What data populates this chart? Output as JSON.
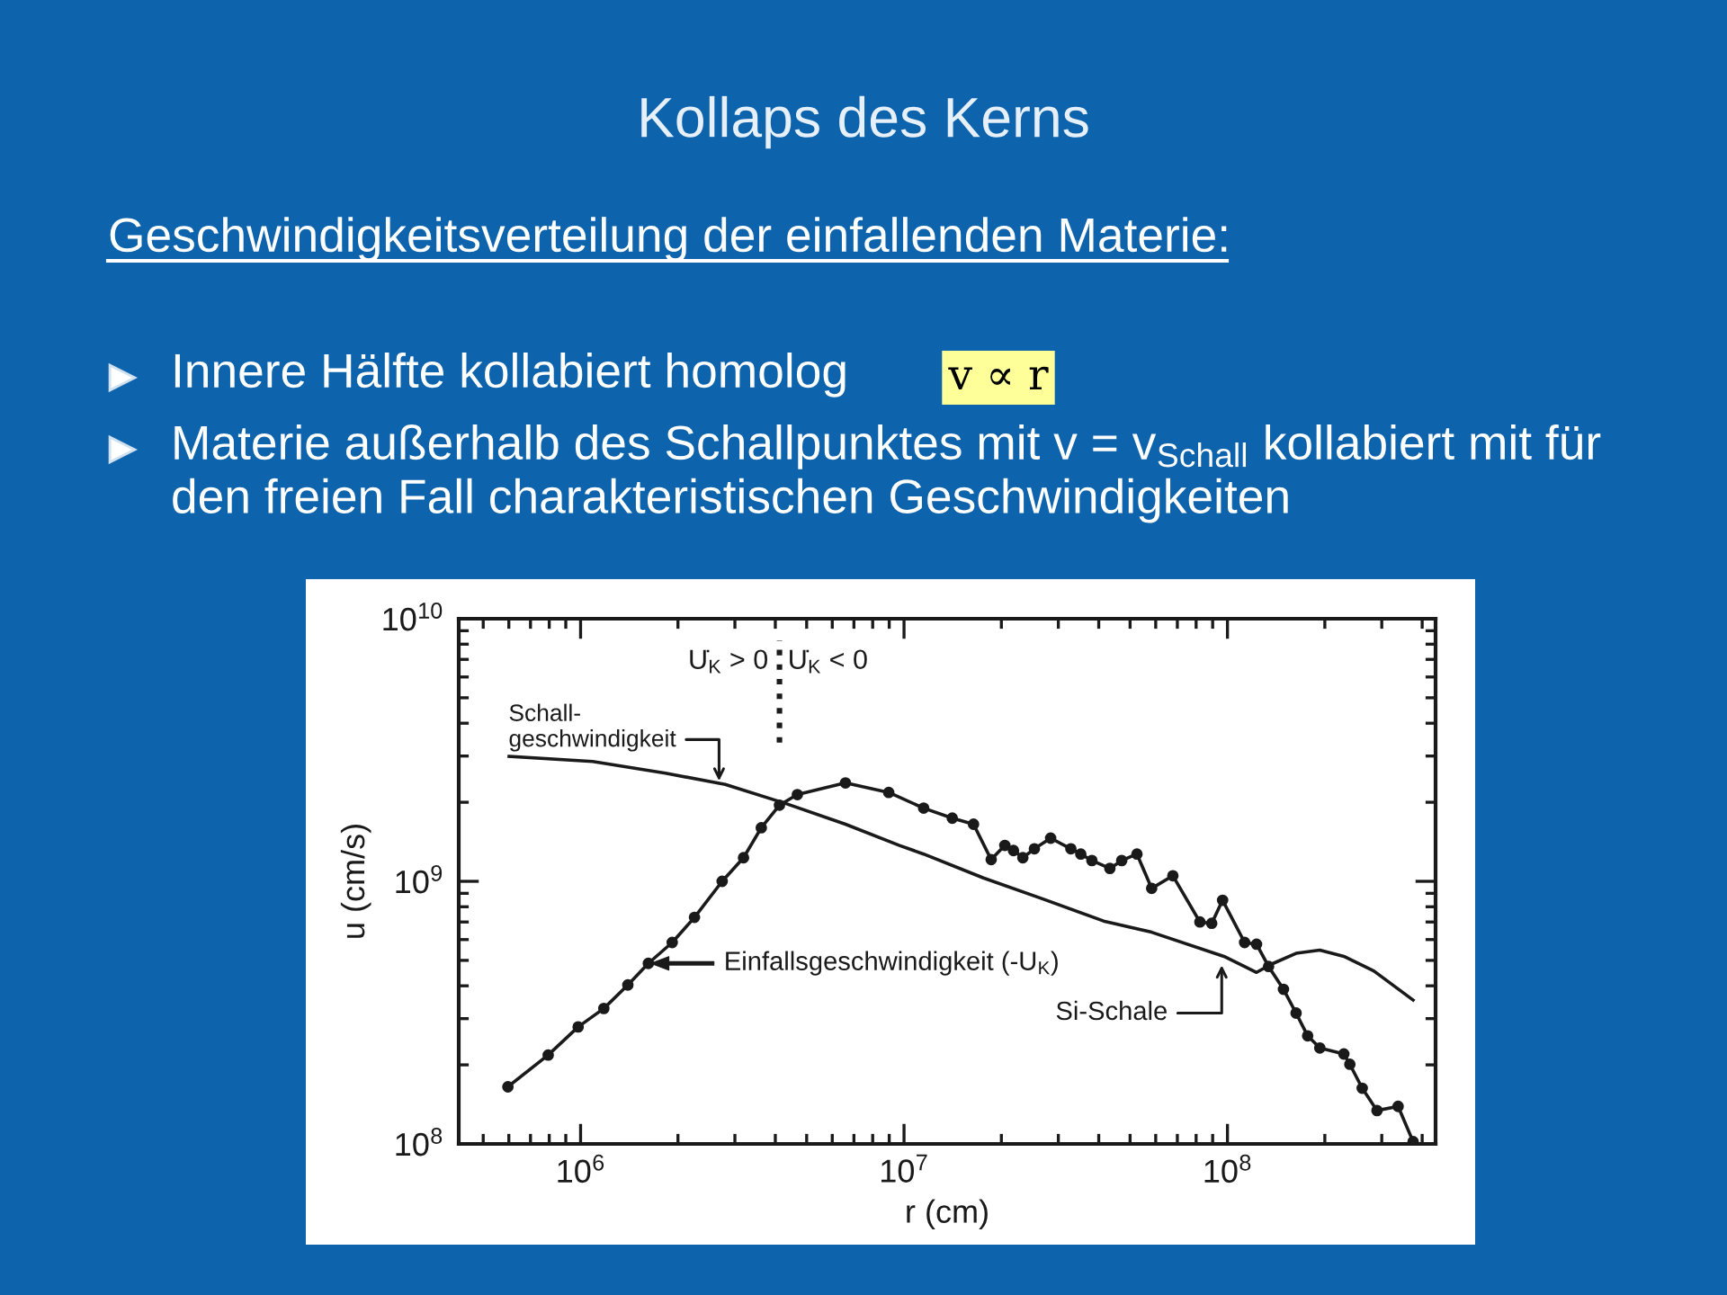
{
  "chart_data": {
    "type": "line",
    "title": "Kollaps des Kerns",
    "subtitle": "Geschwindigkeitsverteilung der einfallenden Materie:",
    "xlabel": "r (cm)",
    "ylabel": "u (cm/s)",
    "log": "xy",
    "xlim": [
      420000.0,
      440000000.0
    ],
    "ylim": [
      100000000.0,
      10000000000.0
    ],
    "xticks": [
      {
        "value": 1000000.0,
        "label": "10$^{6}$"
      },
      {
        "value": 10000000.0,
        "label": "10$^{7}$"
      },
      {
        "value": 100000000.0,
        "label": "10$^{8}$"
      }
    ],
    "yticks": [
      {
        "value": 100000000.0,
        "label": "10$^{8}$"
      },
      {
        "value": 1000000000.0,
        "label": "10$^{9}$"
      },
      {
        "value": 10000000000.0,
        "label": "10$^{10}$"
      }
    ],
    "series": [
      {
        "color": "#1a1a1a",
        "marker": "none",
        "line_style": "solid",
        "x": [
          601000.0,
          1090000.0,
          1830000.0,
          2800000.0,
          4300000.0,
          6590000.0,
          9680000.0,
          11500000.0,
          17600000.0,
          27000000.0,
          41400000.0,
          58300000.0,
          97500000.0,
          111000000.0,
          123000000.0,
          137000000.0,
          163000000.0,
          193000000.0,
          229000000.0,
          284000000.0,
          375000000.0
        ],
        "values": [
          2990000000.0,
          2860000000.0,
          2580000000.0,
          2340000000.0,
          1980000000.0,
          1650000000.0,
          1370000000.0,
          1270000000.0,
          1030000000.0,
          855000000.0,
          706000000.0,
          640000000.0,
          518000000.0,
          479000000.0,
          450000000.0,
          484000000.0,
          532000000.0,
          547000000.0,
          518000000.0,
          455000000.0,
          353000000.0
        ]
      },
      {
        "color": "#1a1a1a",
        "marker": "circle",
        "line_style": "solid",
        "x": [
          596000.0,
          794000.0,
          983000.0,
          1180000.0,
          1400000.0,
          1620000.0,
          1920000.0,
          2250000.0,
          2740000.0,
          3190000.0,
          3620000.0,
          4120000.0,
          4680000.0,
          6590000.0,
          8970000.0,
          11500000.0,
          14100000.0,
          16400000.0,
          18600000.0,
          20500000.0,
          21800000.0,
          23300000.0,
          25300000.0,
          28400000.0,
          32800000.0,
          35200000.0,
          38100000.0,
          43300000.0,
          47100000.0,
          52500000.0,
          58300000.0,
          67800000.0,
          82200000.0,
          89400000.0,
          96600000.0,
          113000000.0,
          123000000.0,
          134000000.0,
          149000000.0,
          163000000.0,
          177000000.0,
          193000000.0,
          229000000.0,
          239000000.0,
          261000000.0,
          290000000.0,
          337000000.0,
          375000000.0
        ],
        "values": [
          165000000.0,
          218000000.0,
          279000000.0,
          328000000.0,
          403000000.0,
          487000000.0,
          585000000.0,
          729000000.0,
          1000000000.0,
          1230000000.0,
          1600000000.0,
          1950000000.0,
          2140000000.0,
          2370000000.0,
          2180000000.0,
          1900000000.0,
          1740000000.0,
          1650000000.0,
          1210000000.0,
          1370000000.0,
          1310000000.0,
          1230000000.0,
          1330000000.0,
          1460000000.0,
          1330000000.0,
          1270000000.0,
          1200000000.0,
          1120000000.0,
          1200000000.0,
          1270000000.0,
          940000000.0,
          1050000000.0,
          700000000.0,
          692000000.0,
          847000000.0,
          585000000.0,
          576000000.0,
          474000000.0,
          388000000.0,
          315000000.0,
          258000000.0,
          232000000.0,
          220000000.0,
          201000000.0,
          163000000.0,
          134000000.0,
          139000000.0,
          102000000.0
        ]
      }
    ],
    "ref_lines": [
      {
        "axis": "x",
        "value": 4120000.0,
        "color": "#1a1a1a",
        "line_style": "dotted"
      }
    ],
    "annotations": [
      "Innere Hälfte kollabiert homolog",
      "v ∝ r",
      "Materie außerhalb des Schallpunktes mit v = v$_{Schall}$ kollabiert mit für den freien Fall charakteristischen Geschwindigkeiten",
      {
        "text": "Schall-\ngeschwindigkeit",
        "x": 2680000.0,
        "y": 2360000000.0
      },
      "U̇$_{K}$ > 0",
      "U̇$_{K}$ < 0",
      {
        "text": "Einfallsgeschwindigkeit (-U$_{K}$)",
        "x": 1620000.0,
        "y": 487000000.0
      },
      {
        "text": "Si-Schale",
        "x": 96000000.0,
        "y": 490000000.0
      }
    ]
  }
}
